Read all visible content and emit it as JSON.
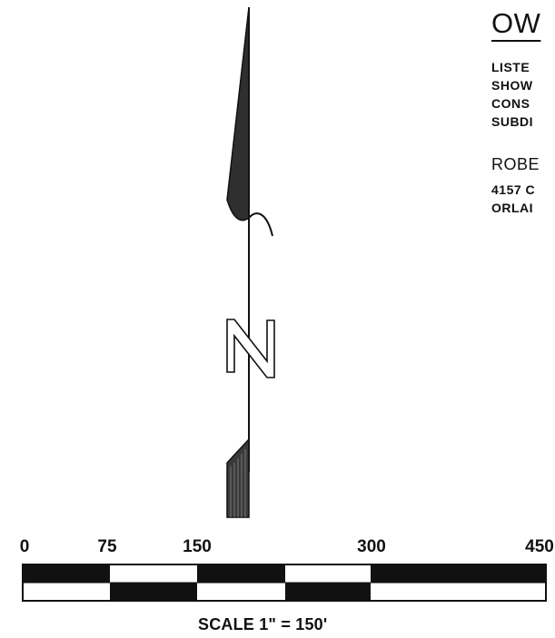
{
  "owner": {
    "title": "OW",
    "lines": [
      "LISTE",
      "SHOW",
      "CONS",
      "SUBDI"
    ],
    "name": "ROBE",
    "address": [
      "4157 C",
      "ORLAI"
    ]
  },
  "scale": {
    "tick_labels": [
      "0",
      "75",
      "150",
      "300",
      "450"
    ],
    "caption": "SCALE 1\" = 150'"
  },
  "colors": {
    "ink": "#111111",
    "paper": "#ffffff"
  }
}
